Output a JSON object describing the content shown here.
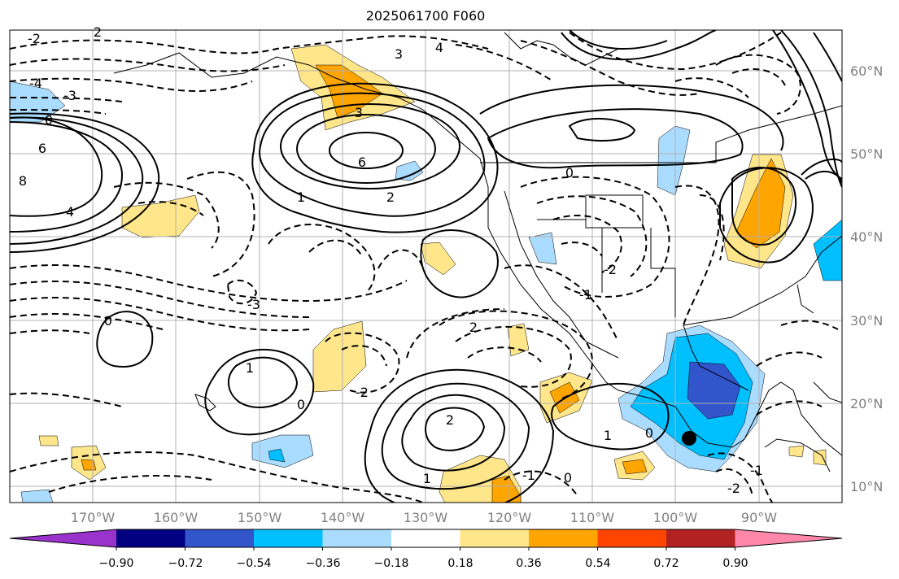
{
  "map": {
    "title": "2025061700 F060",
    "lon_labels": [
      "170°W",
      "160°W",
      "150°W",
      "140°W",
      "130°W",
      "120°W",
      "110°W",
      "100°W",
      "90°W"
    ],
    "lat_labels": [
      "60°N",
      "50°N",
      "40°N",
      "30°N",
      "20°N",
      "10°N"
    ],
    "contour_labels": [
      "2",
      "3",
      "4",
      "6",
      "8",
      "-2",
      "-3",
      "-4",
      "0",
      "1",
      "2",
      "6",
      "4",
      "3",
      "0",
      "-2",
      "-1",
      "-3",
      "0",
      "1",
      "0",
      "2",
      "1",
      "-1",
      "0",
      "-2",
      "2",
      "1",
      "0",
      "-1",
      "-2"
    ]
  },
  "colorbar": {
    "tick_labels": [
      "−0.90",
      "−0.72",
      "−0.54",
      "−0.36",
      "−0.18",
      "0.18",
      "0.36",
      "0.54",
      "0.72",
      "0.90"
    ],
    "colors": [
      "#9933cc",
      "#000080",
      "#3355cc",
      "#00bfff",
      "#aadcff",
      "#ffffff",
      "#ffe68a",
      "#ffa500",
      "#ff4500",
      "#b22222",
      "#ff88aa"
    ]
  },
  "shading_colors": {
    "light_yellow": "#ffe68a",
    "orange": "#ffa500",
    "light_blue": "#aadcff",
    "blue": "#00bfff",
    "dark_blue": "#3355cc"
  }
}
